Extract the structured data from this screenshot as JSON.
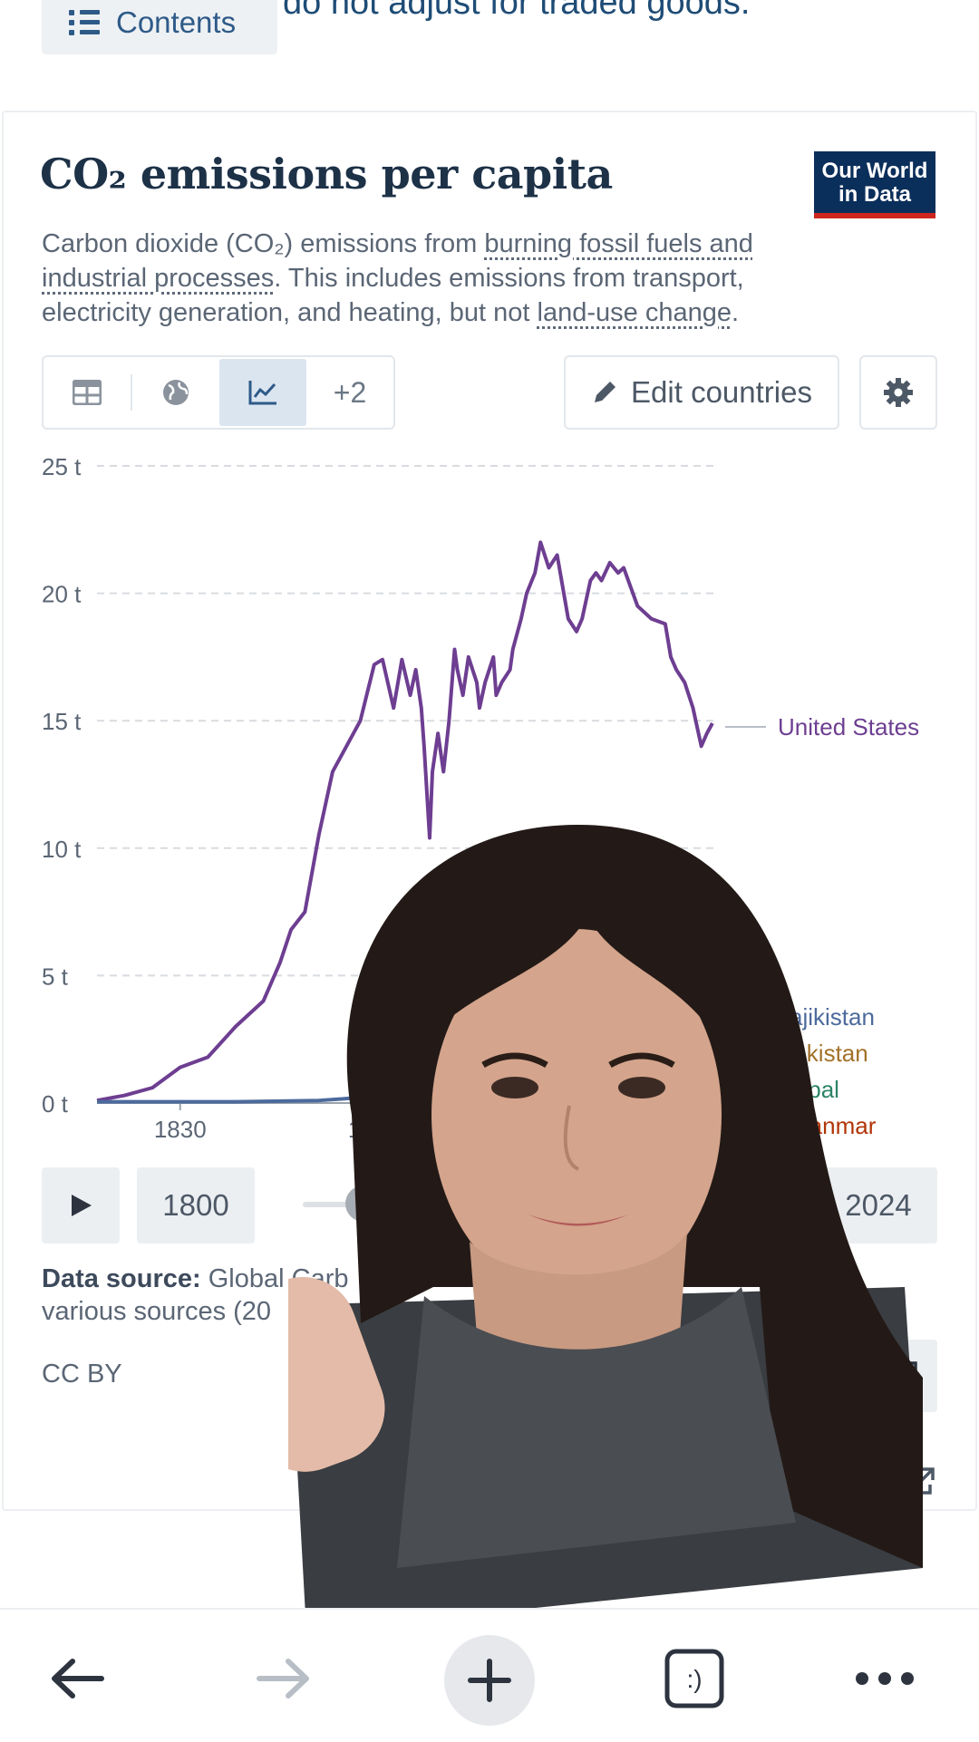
{
  "top": {
    "contents_label": "Contents",
    "text_fragment": "do not adjust for traded goods."
  },
  "card": {
    "title": "CO₂ emissions per capita",
    "logo": {
      "line1": "Our World",
      "line2": "in Data"
    },
    "subtitle": {
      "part1": "Carbon dioxide (CO₂) emissions from ",
      "link1": "burning fossil fuels and industrial processes",
      "part2": ". This includes emissions from transport, electricity generation, and heating, but not ",
      "link2": "land-use change",
      "part3": "."
    },
    "tabs": [
      {
        "icon": "table-icon"
      },
      {
        "icon": "globe-icon"
      },
      {
        "icon": "line-chart-icon",
        "active": true
      },
      {
        "label": "+2"
      }
    ],
    "edit_countries_label": "Edit countries",
    "timeline": {
      "start_year": "1800",
      "end_year": "2024"
    },
    "data_source_label": "Data source:",
    "data_source_text": "Global Carb",
    "data_source_text2": "various sources (20",
    "license": "CC BY"
  },
  "chart_data": {
    "type": "line",
    "title": "CO₂ emissions per capita",
    "y_ticks": [
      "0 t",
      "5 t",
      "10 t",
      "15 t",
      "20 t",
      "25 t"
    ],
    "x_ticks": [
      "1830",
      "1900"
    ],
    "ylim": [
      0,
      25
    ],
    "xlim": [
      1800,
      2024
    ],
    "series": [
      {
        "name": "United States",
        "color": "#6d3e91",
        "x": [
          1800,
          1810,
          1820,
          1830,
          1840,
          1850,
          1860,
          1866,
          1870,
          1875,
          1880,
          1885,
          1890,
          1895,
          1900,
          1903,
          1907,
          1910,
          1913,
          1915,
          1917,
          1918,
          1920,
          1921,
          1923,
          1925,
          1927,
          1929,
          1930,
          1932,
          1934,
          1937,
          1938,
          1940,
          1943,
          1944,
          1946,
          1949,
          1950,
          1953,
          1955,
          1958,
          1960,
          1963,
          1966,
          1970,
          1973,
          1975,
          1978,
          1980,
          1982,
          1985,
          1988,
          1990,
          1995,
          2000,
          2005,
          2007,
          2009,
          2012,
          2015,
          2018,
          2020,
          2022
        ],
        "y": [
          0.1,
          0.3,
          0.6,
          1.4,
          1.8,
          3.0,
          4.0,
          5.5,
          6.8,
          7.5,
          10.5,
          13.0,
          14.0,
          15.0,
          17.2,
          17.4,
          15.5,
          17.4,
          16.0,
          17.0,
          15.5,
          14.0,
          10.4,
          13.0,
          14.5,
          13.0,
          15.0,
          17.8,
          17.0,
          16.0,
          17.5,
          16.5,
          15.5,
          16.5,
          17.5,
          16.0,
          16.5,
          17.0,
          17.8,
          19.0,
          20.0,
          20.8,
          22.0,
          21.0,
          21.5,
          19.0,
          18.5,
          19.0,
          20.5,
          20.8,
          20.5,
          21.2,
          20.8,
          21.0,
          19.5,
          19.0,
          18.8,
          17.5,
          17.0,
          16.5,
          15.5,
          14.0,
          14.5,
          14.9
        ]
      },
      {
        "name": "Tajikistan",
        "color": "#4c6a9c",
        "x": [
          1800,
          1850,
          1880,
          1900,
          1915,
          1925
        ],
        "y": [
          0.05,
          0.05,
          0.1,
          0.25,
          0.45,
          0.35
        ]
      },
      {
        "name": "Pakistan",
        "color": "#a2722a"
      },
      {
        "name": "Nepal",
        "color": "#2c8465"
      },
      {
        "name": "Myanmar",
        "color": "#b13507"
      }
    ]
  },
  "bottom_bar": {
    "items": [
      {
        "icon": "back-arrow-icon"
      },
      {
        "icon": "forward-arrow-icon"
      },
      {
        "icon": "plus-icon"
      },
      {
        "icon": "tabs-icon",
        "label": ":)"
      },
      {
        "icon": "more-icon"
      }
    ]
  }
}
